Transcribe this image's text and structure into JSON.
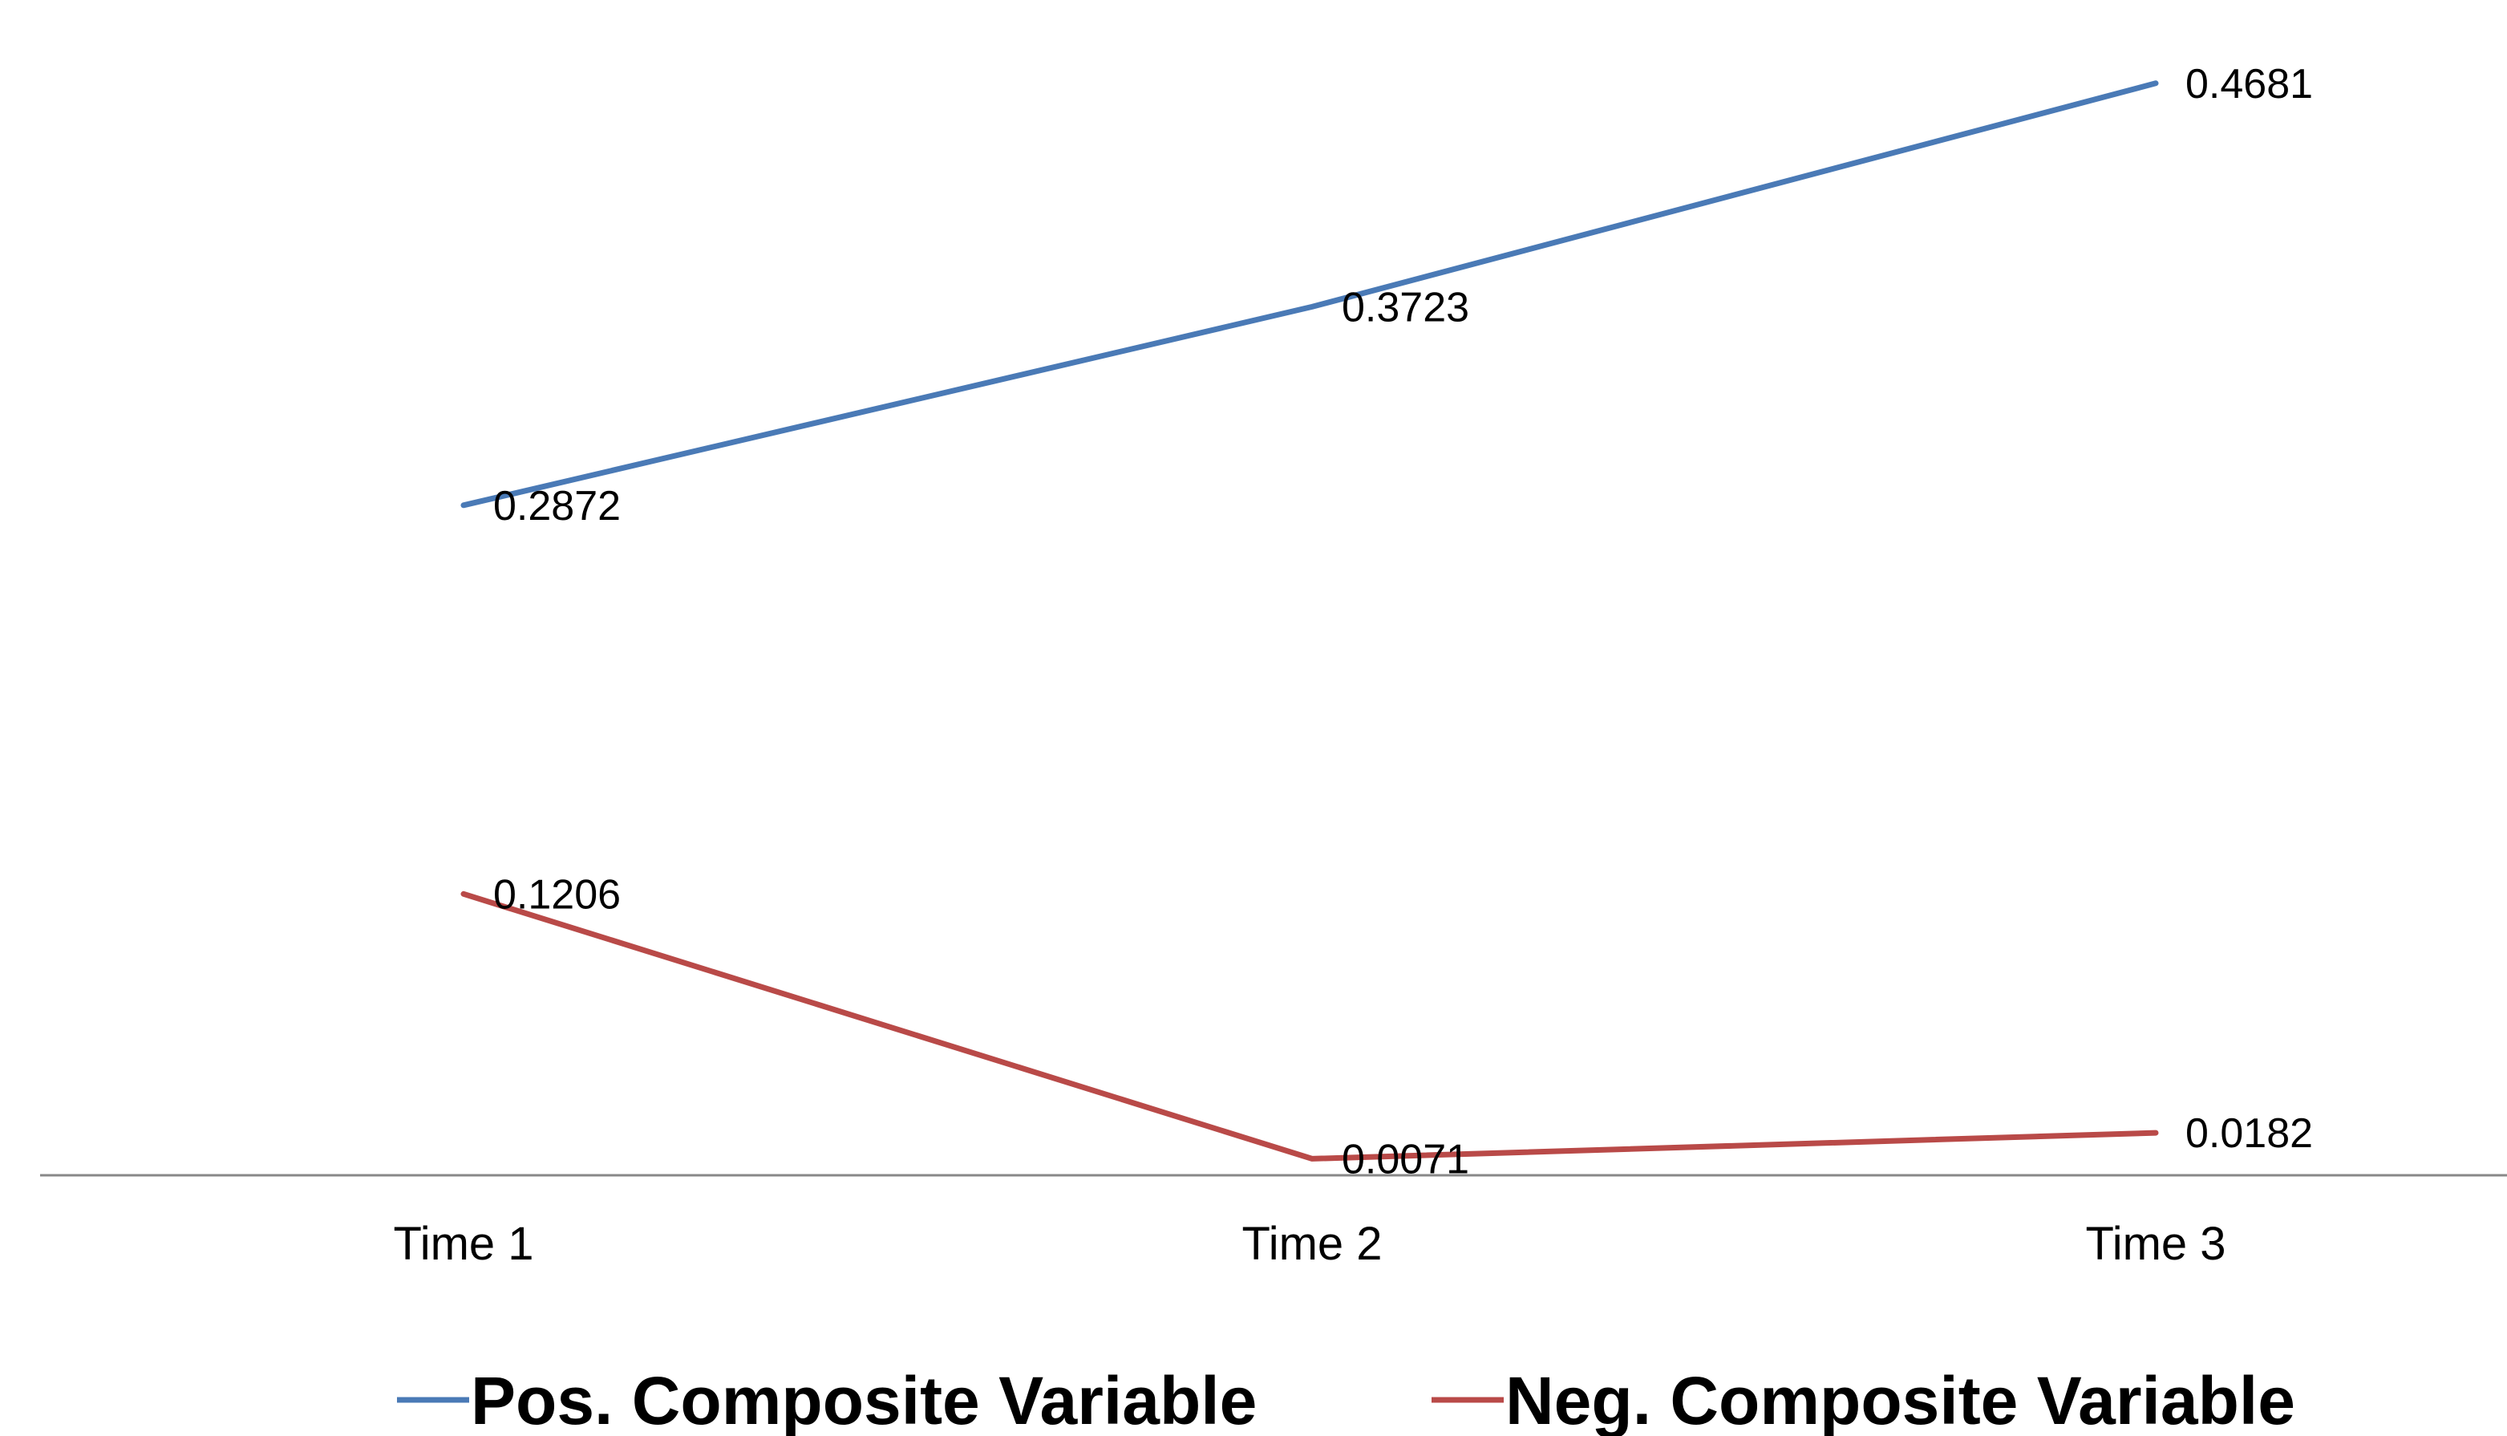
{
  "chart_data": {
    "type": "line",
    "categories": [
      "Time 1",
      "Time 2",
      "Time 3"
    ],
    "series": [
      {
        "name": "Pos. Composite Variable",
        "values": [
          0.2872,
          0.3723,
          0.4681
        ],
        "labels": [
          "0.2872",
          "0.3723",
          "0.4681"
        ],
        "color": "#4a7ab6"
      },
      {
        "name": "Neg. Composite Variable",
        "values": [
          0.1206,
          0.0071,
          0.0182
        ],
        "labels": [
          "0.1206",
          "0.0071",
          "0.0182"
        ],
        "color": "#b94a48"
      }
    ],
    "ylim": [
      0,
      0.4866
    ],
    "grid": false,
    "legend_position": "bottom",
    "axis_color": "#888888"
  }
}
